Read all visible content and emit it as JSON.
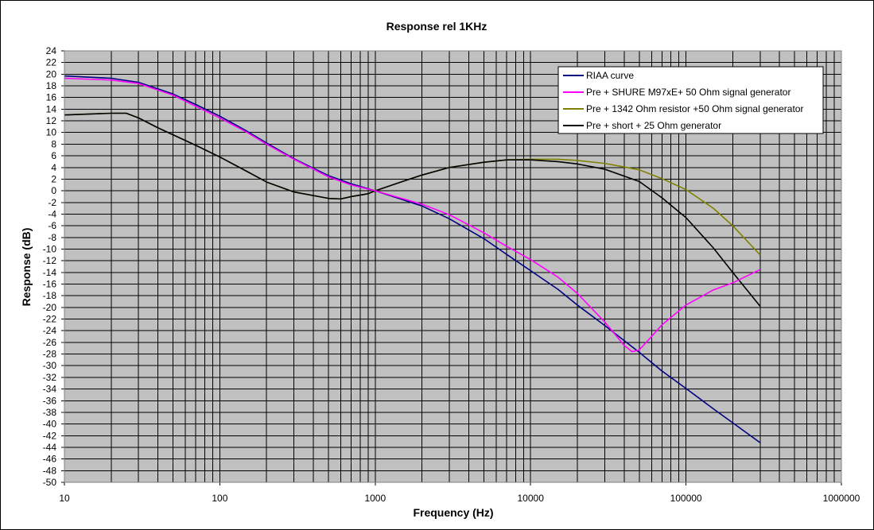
{
  "chart_data": {
    "type": "line",
    "title": "Response rel 1KHz",
    "xlabel": "Frequency (Hz)",
    "ylabel": "Response (dB)",
    "x_scale": "log",
    "xlim": [
      10,
      1000000
    ],
    "ylim": [
      -50,
      24
    ],
    "y_step": 2,
    "x_ticks": [
      10,
      100,
      1000,
      10000,
      100000,
      1000000
    ],
    "x_tick_labels": [
      "10",
      "100",
      "1000",
      "10000",
      "100000",
      "1000000"
    ],
    "grid": true,
    "legend_position": "top-right",
    "series": [
      {
        "name": "RIAA curve",
        "color": "#000080",
        "points": [
          [
            10,
            19.7
          ],
          [
            20,
            19.3
          ],
          [
            30,
            18.6
          ],
          [
            50,
            16.6
          ],
          [
            70,
            14.8
          ],
          [
            100,
            12.8
          ],
          [
            150,
            10.2
          ],
          [
            200,
            8.2
          ],
          [
            300,
            5.5
          ],
          [
            500,
            2.6
          ],
          [
            700,
            1.2
          ],
          [
            1000,
            0.0
          ],
          [
            2000,
            -2.6
          ],
          [
            3000,
            -4.8
          ],
          [
            5000,
            -8.2
          ],
          [
            7000,
            -10.9
          ],
          [
            10000,
            -13.7
          ],
          [
            15000,
            -16.9
          ],
          [
            20000,
            -19.6
          ],
          [
            30000,
            -23.1
          ],
          [
            50000,
            -27.7
          ],
          [
            70000,
            -30.9
          ],
          [
            100000,
            -33.9
          ],
          [
            150000,
            -37.4
          ],
          [
            200000,
            -39.8
          ],
          [
            300000,
            -43.2
          ]
        ]
      },
      {
        "name": "Pre + SHURE M97xE+ 50 Ohm signal generator",
        "color": "#FF00FF",
        "points": [
          [
            10,
            19.3
          ],
          [
            20,
            19.0
          ],
          [
            30,
            18.4
          ],
          [
            50,
            16.4
          ],
          [
            70,
            14.5
          ],
          [
            100,
            12.5
          ],
          [
            150,
            10.0
          ],
          [
            200,
            8.0
          ],
          [
            300,
            5.4
          ],
          [
            500,
            2.4
          ],
          [
            700,
            1.0
          ],
          [
            1000,
            0.0
          ],
          [
            2000,
            -2.3
          ],
          [
            3000,
            -4.1
          ],
          [
            5000,
            -7.2
          ],
          [
            7000,
            -9.5
          ],
          [
            10000,
            -11.8
          ],
          [
            15000,
            -14.8
          ],
          [
            20000,
            -17.6
          ],
          [
            30000,
            -22.5
          ],
          [
            40000,
            -26.5
          ],
          [
            45000,
            -27.6
          ],
          [
            50000,
            -27.3
          ],
          [
            60000,
            -25.0
          ],
          [
            70000,
            -23.0
          ],
          [
            100000,
            -19.6
          ],
          [
            150000,
            -17.0
          ],
          [
            200000,
            -15.8
          ],
          [
            300000,
            -13.5
          ]
        ]
      },
      {
        "name": "Pre + 1342 Ohm resistor +50 Ohm signal generator",
        "color": "#808000",
        "points": [
          [
            10,
            13.0
          ],
          [
            20,
            13.3
          ],
          [
            25,
            13.3
          ],
          [
            30,
            12.5
          ],
          [
            40,
            10.8
          ],
          [
            50,
            9.6
          ],
          [
            70,
            7.8
          ],
          [
            100,
            5.8
          ],
          [
            150,
            3.3
          ],
          [
            200,
            1.5
          ],
          [
            300,
            -0.2
          ],
          [
            500,
            -1.3
          ],
          [
            600,
            -1.4
          ],
          [
            700,
            -1.0
          ],
          [
            900,
            -0.5
          ],
          [
            1000,
            0.0
          ],
          [
            1500,
            1.6
          ],
          [
            2000,
            2.7
          ],
          [
            3000,
            4.0
          ],
          [
            5000,
            4.9
          ],
          [
            7000,
            5.3
          ],
          [
            10000,
            5.4
          ],
          [
            15000,
            5.4
          ],
          [
            20000,
            5.2
          ],
          [
            30000,
            4.7
          ],
          [
            50000,
            3.6
          ],
          [
            70000,
            2.1
          ],
          [
            100000,
            0.2
          ],
          [
            150000,
            -3.0
          ],
          [
            200000,
            -6.0
          ],
          [
            300000,
            -11.0
          ]
        ]
      },
      {
        "name": "Pre + short + 25 Ohm generator",
        "color": "#000000",
        "points": [
          [
            10,
            13.0
          ],
          [
            20,
            13.3
          ],
          [
            25,
            13.3
          ],
          [
            30,
            12.5
          ],
          [
            40,
            10.8
          ],
          [
            50,
            9.6
          ],
          [
            70,
            7.8
          ],
          [
            100,
            5.8
          ],
          [
            150,
            3.3
          ],
          [
            200,
            1.5
          ],
          [
            300,
            -0.2
          ],
          [
            500,
            -1.3
          ],
          [
            600,
            -1.4
          ],
          [
            700,
            -1.0
          ],
          [
            900,
            -0.5
          ],
          [
            1000,
            0.0
          ],
          [
            1500,
            1.6
          ],
          [
            2000,
            2.7
          ],
          [
            3000,
            4.0
          ],
          [
            5000,
            4.9
          ],
          [
            7000,
            5.3
          ],
          [
            10000,
            5.3
          ],
          [
            15000,
            5.0
          ],
          [
            20000,
            4.6
          ],
          [
            30000,
            3.7
          ],
          [
            50000,
            1.6
          ],
          [
            70000,
            -1.2
          ],
          [
            100000,
            -4.6
          ],
          [
            150000,
            -9.8
          ],
          [
            200000,
            -14.0
          ],
          [
            300000,
            -19.8
          ]
        ]
      }
    ]
  }
}
